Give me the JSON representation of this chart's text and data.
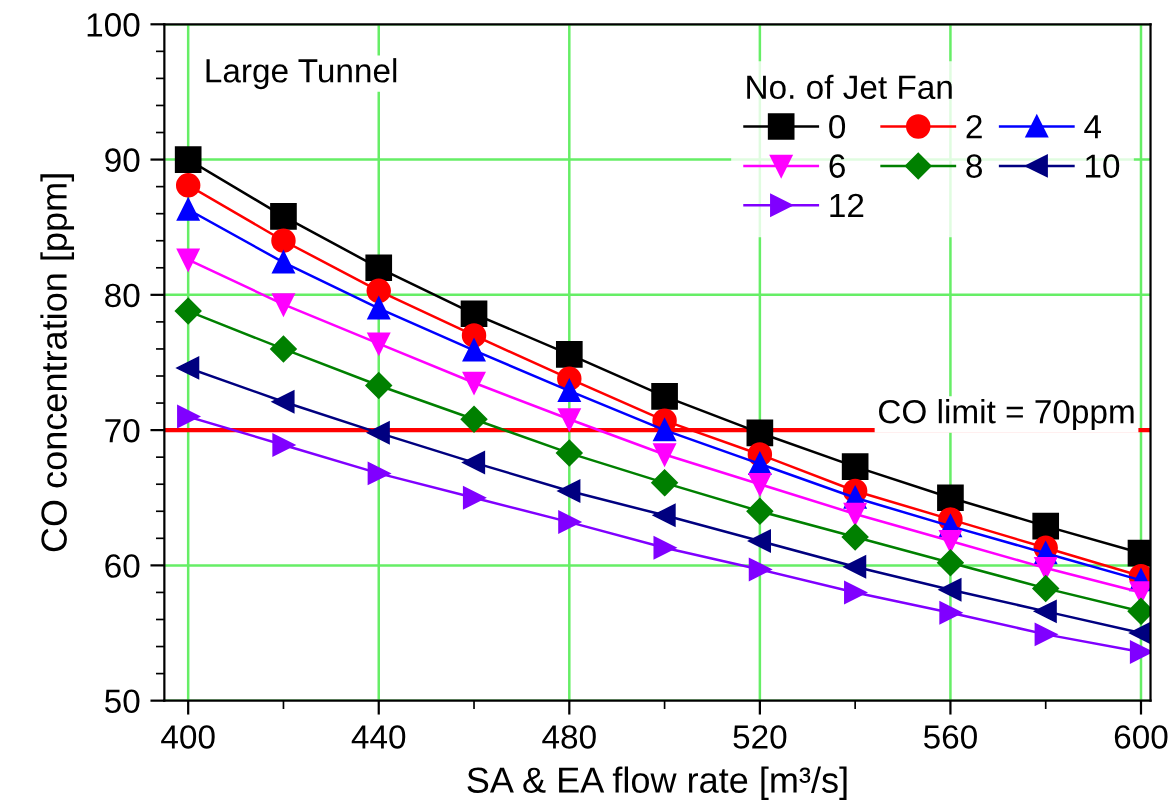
{
  "chart_data": {
    "type": "line",
    "xlabel": "SA & EA flow rate [m³/s]",
    "ylabel": "CO concentration [ppm]",
    "legend_title": "No. of Jet Fan",
    "legend": "top right",
    "grid": true,
    "annotations": [
      "Large Tunnel"
    ],
    "x": [
      400,
      420,
      440,
      460,
      480,
      500,
      520,
      540,
      560,
      580,
      600
    ],
    "xlim": [
      395,
      602
    ],
    "ylim": [
      50,
      100
    ],
    "xticks": [
      400,
      {
        "value": 420,
        "label": null
      },
      440,
      {
        "value": 460,
        "label": null
      },
      480,
      {
        "value": 500,
        "label": null
      },
      520,
      {
        "value": 540,
        "label": null
      },
      560,
      {
        "value": 580,
        "label": null
      },
      600
    ],
    "yticks": [
      50,
      {
        "value": 52,
        "label": null
      },
      {
        "value": 54,
        "label": null
      },
      {
        "value": 56,
        "label": null
      },
      {
        "value": 58,
        "label": null
      },
      60,
      {
        "value": 62,
        "label": null
      },
      {
        "value": 64,
        "label": null
      },
      {
        "value": 66,
        "label": null
      },
      {
        "value": 68,
        "label": null
      },
      70,
      {
        "value": 72,
        "label": null
      },
      {
        "value": 74,
        "label": null
      },
      {
        "value": 76,
        "label": null
      },
      {
        "value": 78,
        "label": null
      },
      80,
      {
        "value": 82,
        "label": null
      },
      {
        "value": 84,
        "label": null
      },
      {
        "value": 86,
        "label": null
      },
      {
        "value": 88,
        "label": null
      },
      90,
      {
        "value": 92,
        "label": null
      },
      {
        "value": 94,
        "label": null
      },
      {
        "value": 96,
        "label": null
      },
      {
        "value": 98,
        "label": null
      },
      100
    ],
    "ref_lines": [
      {
        "axis": "y",
        "value": 70,
        "label": "CO limit = 70ppm",
        "color": "#ff0000"
      }
    ],
    "series": [
      {
        "name": "0",
        "color": "#000000",
        "marker": "square",
        "values": [
          90.0,
          85.8,
          82.0,
          78.6,
          75.6,
          72.5,
          69.8,
          67.3,
          65.0,
          62.9,
          60.9
        ]
      },
      {
        "name": "2",
        "color": "#ff0000",
        "marker": "circle",
        "values": [
          88.1,
          84.0,
          80.3,
          77.0,
          73.8,
          70.7,
          68.2,
          65.5,
          63.4,
          61.3,
          59.2
        ]
      },
      {
        "name": "4",
        "color": "#0000ff",
        "marker": "triangle",
        "values": [
          86.3,
          82.4,
          79.0,
          75.9,
          72.9,
          70.0,
          67.5,
          65.0,
          62.9,
          60.9,
          58.9
        ]
      },
      {
        "name": "6",
        "color": "#ff00ff",
        "marker": "triangle_down",
        "values": [
          82.6,
          79.3,
          76.4,
          73.5,
          70.8,
          68.2,
          66.0,
          63.8,
          61.8,
          59.8,
          58.0
        ]
      },
      {
        "name": "8",
        "color": "#008000",
        "marker": "diamond",
        "values": [
          78.8,
          76.0,
          73.3,
          70.8,
          68.3,
          66.1,
          64.0,
          62.1,
          60.2,
          58.3,
          56.6
        ]
      },
      {
        "name": "10",
        "color": "#000080",
        "marker": "triangle_left",
        "values": [
          74.6,
          72.1,
          69.8,
          67.6,
          65.5,
          63.7,
          61.8,
          59.9,
          58.2,
          56.6,
          55.0
        ]
      },
      {
        "name": "12",
        "color": "#8000ff",
        "marker": "triangle_right",
        "values": [
          71.0,
          68.9,
          66.8,
          65.0,
          63.2,
          61.3,
          59.7,
          58.0,
          56.5,
          54.9,
          53.6
        ]
      }
    ]
  }
}
